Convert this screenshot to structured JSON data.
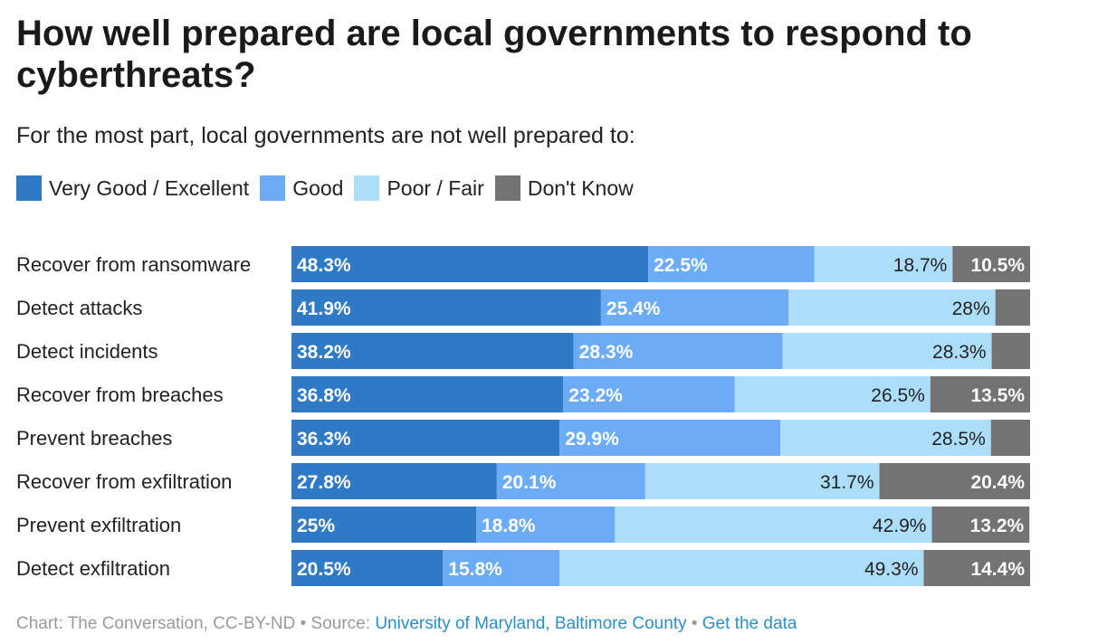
{
  "title": "How well prepared are local governments to respond to cyberthreats?",
  "subtitle": "For the most part, local governments are not well prepared to:",
  "legend": [
    {
      "label": "Very Good / Excellent",
      "color": "#2f7ac6"
    },
    {
      "label": "Good",
      "color": "#6cacf7"
    },
    {
      "label": "Poor / Fair",
      "color": "#acdefa"
    },
    {
      "label": "Don't Know",
      "color": "#737373"
    }
  ],
  "chart_data": {
    "type": "bar",
    "orientation": "horizontal",
    "stacked": true,
    "categories": [
      "Recover from ransomware",
      "Detect attacks",
      "Detect incidents",
      "Recover from breaches",
      "Prevent breaches",
      "Recover from exfiltration",
      "Prevent exfiltration",
      "Detect exfiltration"
    ],
    "series": [
      {
        "name": "Very Good / Excellent",
        "color": "#2f7ac6",
        "values": [
          48.3,
          41.9,
          38.2,
          36.8,
          36.3,
          27.8,
          25,
          20.5
        ],
        "labels": [
          "48.3%",
          "41.9%",
          "38.2%",
          "36.8%",
          "36.3%",
          "27.8%",
          "25%",
          "20.5%"
        ]
      },
      {
        "name": "Good",
        "color": "#6cacf7",
        "values": [
          22.5,
          25.4,
          28.3,
          23.2,
          29.9,
          20.1,
          18.8,
          15.8
        ],
        "labels": [
          "22.5%",
          "25.4%",
          "28.3%",
          "23.2%",
          "29.9%",
          "20.1%",
          "18.8%",
          "15.8%"
        ]
      },
      {
        "name": "Poor / Fair",
        "color": "#acdefa",
        "values": [
          18.7,
          28,
          28.3,
          26.5,
          28.5,
          31.7,
          42.9,
          49.3
        ],
        "labels": [
          "18.7%",
          "28%",
          "28.3%",
          "26.5%",
          "28.5%",
          "31.7%",
          "42.9%",
          "49.3%"
        ]
      },
      {
        "name": "Don't Know",
        "color": "#737373",
        "values": [
          10.5,
          4.7,
          5.2,
          13.5,
          5.3,
          20.4,
          13.2,
          14.4
        ],
        "labels": [
          "10.5%",
          "",
          "",
          "13.5%",
          "",
          "20.4%",
          "13.2%",
          "14.4%"
        ]
      }
    ],
    "xlim": [
      0,
      100
    ]
  },
  "footer": {
    "prefix": "Chart: The Conversation, CC-BY-ND • Source: ",
    "source_link": "University of Maryland, Baltimore County",
    "separator": " • ",
    "data_link": "Get the data"
  }
}
